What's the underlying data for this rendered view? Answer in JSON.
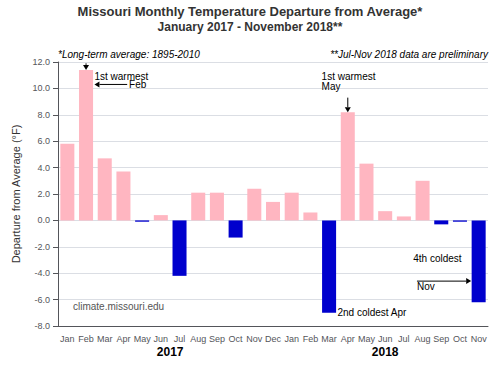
{
  "chart_data": {
    "type": "bar",
    "title": "Missouri Monthly Temperature Departure from Average*",
    "subtitle": "January 2017 - November 2018**",
    "ylabel": "Departure from Average (°F)",
    "categories": [
      "Jan",
      "Feb",
      "Mar",
      "Apr",
      "May",
      "Jun",
      "Jul",
      "Aug",
      "Sep",
      "Oct",
      "Nov",
      "Dec",
      "Jan",
      "Feb",
      "Mar",
      "Apr",
      "May",
      "Jun",
      "Jul",
      "Aug",
      "Sep",
      "Oct",
      "Nov"
    ],
    "values": [
      5.8,
      11.4,
      4.7,
      3.7,
      -0.1,
      0.4,
      -4.2,
      2.1,
      2.1,
      -1.3,
      2.4,
      1.4,
      2.1,
      0.6,
      -7.0,
      8.2,
      4.3,
      0.7,
      0.3,
      3.0,
      -0.3,
      -0.1,
      -6.2
    ],
    "colors": [
      "#ffb6c1",
      "#ffb6c1",
      "#ffb6c1",
      "#ffb6c1",
      "#0000cd",
      "#ffb6c1",
      "#0000cd",
      "#ffb6c1",
      "#ffb6c1",
      "#0000cd",
      "#ffb6c1",
      "#ffb6c1",
      "#ffb6c1",
      "#ffb6c1",
      "#0000cd",
      "#ffb6c1",
      "#ffb6c1",
      "#ffb6c1",
      "#ffb6c1",
      "#ffb6c1",
      "#0000cd",
      "#0000cd",
      "#0000cd"
    ],
    "ylim": [
      -8.0,
      12.0
    ],
    "yticks": [
      {
        "value": -8,
        "label": "-8.0"
      },
      {
        "value": -6,
        "label": "-6.0"
      },
      {
        "value": -4,
        "label": "-4.0"
      },
      {
        "value": -2,
        "label": "-2.0"
      },
      {
        "value": 0,
        "label": "0.0"
      },
      {
        "value": 2,
        "label": "2.0"
      },
      {
        "value": 4,
        "label": "4.0"
      },
      {
        "value": 6,
        "label": "6.0"
      },
      {
        "value": 8,
        "label": "8.0"
      },
      {
        "value": 10,
        "label": "10.0"
      },
      {
        "value": 12,
        "label": "12.0"
      }
    ],
    "grid": true,
    "annotations": [
      "*Long-term average: 1895-2010",
      "**Jul-Nov 2018 data are preliminary",
      "climate.missouri.edu",
      "1st warmest",
      "Feb",
      "1st warmest",
      "May",
      "2nd coldest Apr",
      "4th coldest",
      "Nov",
      "2017",
      "2018"
    ]
  }
}
